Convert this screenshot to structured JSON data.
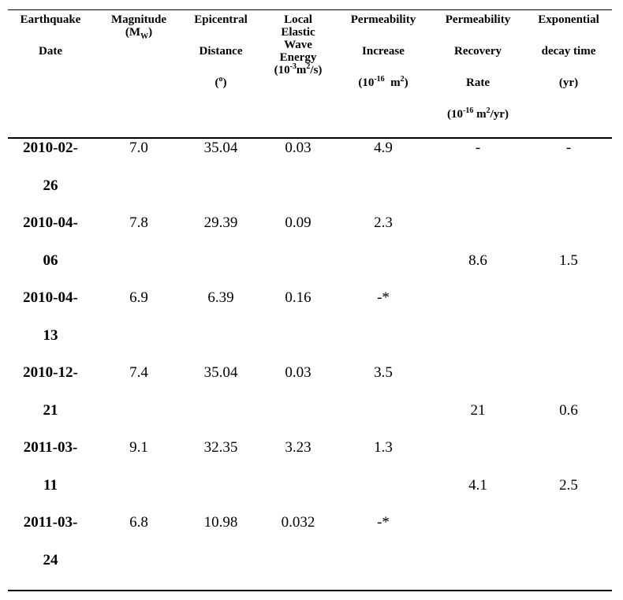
{
  "table": {
    "headers": {
      "date": [
        "Earthquake",
        "Date"
      ],
      "magnitude": [
        "Magnitude",
        "(M",
        "W",
        ")"
      ],
      "distance": [
        "Epicentral",
        "Distance",
        "(",
        "o",
        ")"
      ],
      "energy": [
        "Local",
        "Elastic",
        "Wave",
        "Energy",
        "(10",
        "-3",
        "m",
        "2",
        "/s)"
      ],
      "perm_increase": [
        "Permeability",
        "Increase",
        "(10",
        "-16",
        "  m",
        "2",
        ")"
      ],
      "recovery": [
        "Permeability",
        "Recovery",
        "Rate",
        "(10",
        "-16",
        " m",
        "2",
        "/yr)"
      ],
      "decay": [
        "Exponential",
        "decay time",
        "(yr)"
      ]
    },
    "rows": [
      {
        "date_a": "2010-02-",
        "date_b": "26",
        "magnitude": "7.0",
        "distance": "35.04",
        "energy": "0.03",
        "perm_increase": "4.9",
        "recovery": "-",
        "decay": "-"
      },
      {
        "date_a": "2010-04-",
        "date_b": "06",
        "magnitude": "7.8",
        "distance": "29.39",
        "energy": "0.09",
        "perm_increase": "2.3",
        "recovery": "8.6",
        "decay": "1.5"
      },
      {
        "date_a": "2010-04-",
        "date_b": "13",
        "magnitude": "6.9",
        "distance": "6.39",
        "energy": "0.16",
        "perm_increase": "-*",
        "recovery": "",
        "decay": ""
      },
      {
        "date_a": "2010-12-",
        "date_b": "21",
        "magnitude": "7.4",
        "distance": "35.04",
        "energy": "0.03",
        "perm_increase": "3.5",
        "recovery": "21",
        "decay": "0.6"
      },
      {
        "date_a": "2011-03-",
        "date_b": "11",
        "magnitude": "9.1",
        "distance": "32.35",
        "energy": "3.23",
        "perm_increase": "1.3",
        "recovery": "4.1",
        "decay": "2.5"
      },
      {
        "date_a": "2011-03-",
        "date_b": "24",
        "magnitude": "6.8",
        "distance": "10.98",
        "energy": "0.032",
        "perm_increase": "-*",
        "recovery": "",
        "decay": ""
      }
    ]
  }
}
